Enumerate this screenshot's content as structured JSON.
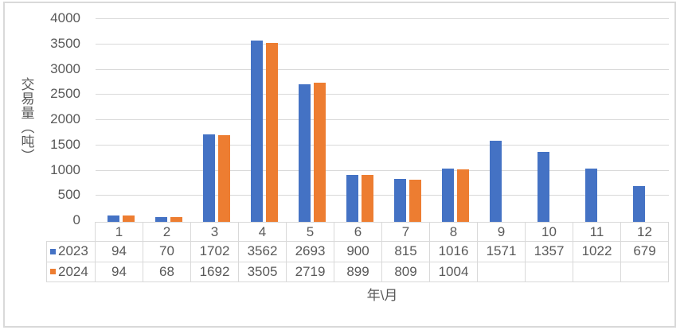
{
  "frame": {
    "border_color": "#d9d9d9",
    "background_color": "#ffffff"
  },
  "chart_data": {
    "type": "bar",
    "title": "",
    "categories": [
      "1",
      "2",
      "3",
      "4",
      "5",
      "6",
      "7",
      "8",
      "9",
      "10",
      "11",
      "12"
    ],
    "series": [
      {
        "name": "2023",
        "color": "#4472c4",
        "values": [
          94,
          70,
          1702,
          3562,
          2693,
          900,
          815,
          1016,
          1571,
          1357,
          1022,
          679
        ]
      },
      {
        "name": "2024",
        "color": "#ed7d31",
        "values": [
          94,
          68,
          1692,
          3505,
          2719,
          899,
          809,
          1004,
          null,
          null,
          null,
          null
        ]
      }
    ],
    "xlabel": "年\\月",
    "ylabel": "交易量（吨）",
    "ylim": [
      0,
      4000
    ],
    "ytick_step": 500,
    "grid": true,
    "gridline_color": "#d9d9d9",
    "axis_text_color": "#595959",
    "table_border_color": "#d9d9d9",
    "legend_position": "data-table-left-keys",
    "data_table_shown": true
  }
}
